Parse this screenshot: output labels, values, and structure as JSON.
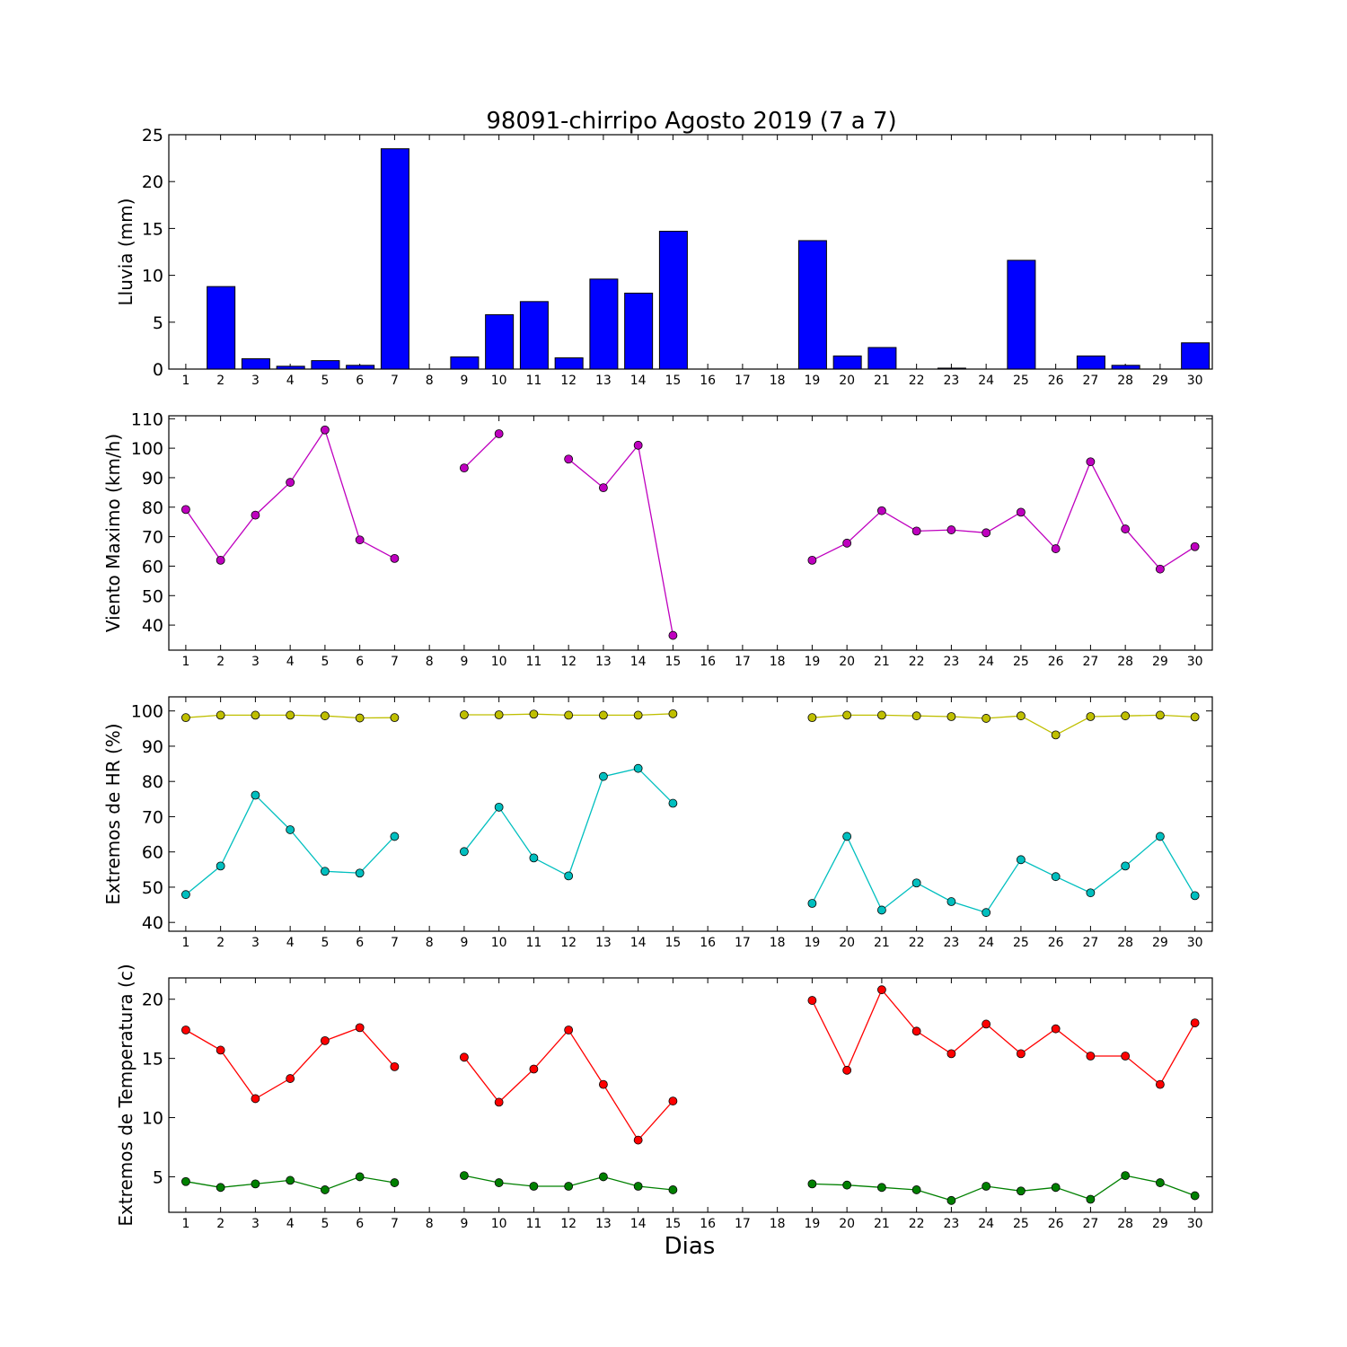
{
  "figure": {
    "title": "98091-chirripo Agosto 2019  (7 a 7)",
    "xlabel": "Dias"
  },
  "chart_data": [
    {
      "type": "bar",
      "ylabel": "Lluvia (mm)",
      "categories": [
        1,
        2,
        3,
        4,
        5,
        6,
        7,
        8,
        9,
        10,
        11,
        12,
        13,
        14,
        15,
        16,
        17,
        18,
        19,
        20,
        21,
        22,
        23,
        24,
        25,
        26,
        27,
        28,
        29,
        30
      ],
      "ylim": [
        0,
        25
      ],
      "yticks": [
        0,
        5,
        10,
        15,
        20,
        25
      ],
      "series": [
        {
          "color": "#0000ff",
          "values": [
            0,
            8.8,
            1.1,
            0.3,
            0.9,
            0.4,
            23.5,
            0,
            1.3,
            5.8,
            7.2,
            1.2,
            9.6,
            8.1,
            14.7,
            0,
            0,
            0,
            13.7,
            1.4,
            2.3,
            0,
            0.1,
            0,
            11.6,
            0,
            1.4,
            0.4,
            0,
            2.8
          ]
        }
      ]
    },
    {
      "type": "line",
      "ylabel": "Viento Maximo (km/h)",
      "categories": [
        1,
        2,
        3,
        4,
        5,
        6,
        7,
        8,
        9,
        10,
        11,
        12,
        13,
        14,
        15,
        16,
        17,
        18,
        19,
        20,
        21,
        22,
        23,
        24,
        25,
        26,
        27,
        28,
        29,
        30
      ],
      "ylim": [
        31.5,
        111
      ],
      "yticks": [
        40,
        50,
        60,
        70,
        80,
        90,
        100,
        110
      ],
      "series": [
        {
          "color": "#bf00bf",
          "values": [
            79.2,
            62.0,
            77.3,
            88.4,
            106.2,
            68.9,
            62.6,
            null,
            93.3,
            104.9,
            null,
            96.3,
            86.6,
            101.0,
            36.5,
            null,
            null,
            null,
            62.0,
            67.8,
            78.8,
            71.9,
            72.3,
            71.3,
            78.3,
            65.9,
            95.4,
            72.6,
            59.0,
            66.6
          ]
        }
      ]
    },
    {
      "type": "line",
      "ylabel": "Extremos de HR (%)",
      "categories": [
        1,
        2,
        3,
        4,
        5,
        6,
        7,
        8,
        9,
        10,
        11,
        12,
        13,
        14,
        15,
        16,
        17,
        18,
        19,
        20,
        21,
        22,
        23,
        24,
        25,
        26,
        27,
        28,
        29,
        30
      ],
      "ylim": [
        37.5,
        104
      ],
      "yticks": [
        40,
        50,
        60,
        70,
        80,
        90,
        100
      ],
      "series": [
        {
          "color": "#bfbf00",
          "values": [
            98.1,
            98.8,
            98.8,
            98.8,
            98.6,
            98.0,
            98.1,
            null,
            98.9,
            98.9,
            99.1,
            98.8,
            98.8,
            98.8,
            99.2,
            null,
            null,
            null,
            98.1,
            98.8,
            98.8,
            98.6,
            98.4,
            97.9,
            98.6,
            93.2,
            98.4,
            98.6,
            98.8,
            98.3
          ]
        },
        {
          "color": "#00bfbf",
          "values": [
            47.9,
            56.0,
            76.1,
            66.3,
            54.5,
            54.0,
            64.4,
            null,
            60.1,
            72.7,
            58.3,
            53.2,
            81.4,
            83.7,
            73.8,
            null,
            null,
            null,
            45.4,
            64.4,
            43.5,
            51.2,
            45.9,
            42.8,
            57.8,
            53.0,
            48.4,
            56.0,
            64.4,
            47.6
          ]
        }
      ]
    },
    {
      "type": "line",
      "ylabel": "Extremos de Temperatura (c)",
      "categories": [
        1,
        2,
        3,
        4,
        5,
        6,
        7,
        8,
        9,
        10,
        11,
        12,
        13,
        14,
        15,
        16,
        17,
        18,
        19,
        20,
        21,
        22,
        23,
        24,
        25,
        26,
        27,
        28,
        29,
        30
      ],
      "ylim": [
        2.0,
        21.8
      ],
      "yticks": [
        5,
        10,
        15,
        20
      ],
      "series": [
        {
          "color": "#ff0000",
          "values": [
            17.4,
            15.7,
            11.6,
            13.3,
            16.5,
            17.6,
            14.3,
            null,
            15.1,
            11.3,
            14.1,
            17.4,
            12.8,
            8.1,
            11.4,
            null,
            null,
            null,
            19.9,
            14.0,
            20.8,
            17.3,
            15.4,
            17.9,
            15.4,
            17.5,
            15.2,
            15.2,
            12.8,
            18.0
          ]
        },
        {
          "color": "#008000",
          "values": [
            4.6,
            4.1,
            4.4,
            4.7,
            3.9,
            5.0,
            4.5,
            null,
            5.1,
            4.5,
            4.2,
            4.2,
            5.0,
            4.2,
            3.9,
            null,
            null,
            null,
            4.4,
            4.3,
            4.1,
            3.9,
            3.0,
            4.2,
            3.8,
            4.1,
            3.1,
            5.1,
            4.5,
            3.4
          ]
        }
      ]
    }
  ]
}
